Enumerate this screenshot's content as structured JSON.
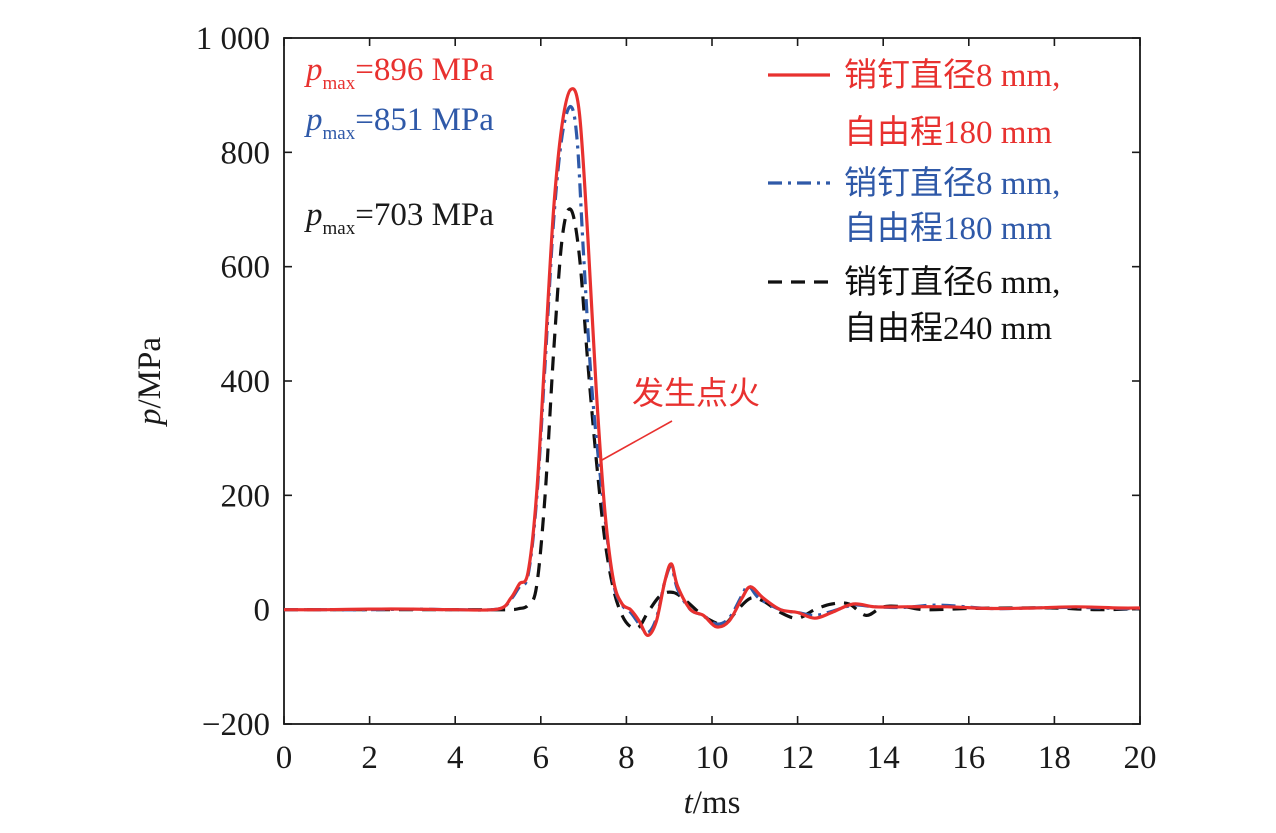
{
  "chart_data": {
    "type": "line",
    "xlabel": {
      "italic": "t",
      "rest": "/ms"
    },
    "ylabel": {
      "italic": "p",
      "rest": "/MPa"
    },
    "xlim": [
      0,
      20
    ],
    "ylim": [
      -200,
      1000
    ],
    "xticks": [
      0,
      2,
      4,
      6,
      8,
      10,
      12,
      14,
      16,
      18,
      20
    ],
    "yticks": [
      {
        "value": -200,
        "label": "−200"
      },
      {
        "value": 0,
        "label": "0"
      },
      {
        "value": 200,
        "label": "200"
      },
      {
        "value": 400,
        "label": "400"
      },
      {
        "value": 600,
        "label": "600"
      },
      {
        "value": 800,
        "label": "800"
      },
      {
        "value": 1000,
        "label": "1 000"
      }
    ],
    "grid": false,
    "legend_position": "top-right",
    "series": [
      {
        "name_line1": "销钉直径8 mm,",
        "name_line2": "自由程180 mm",
        "color": "#e8312f",
        "dash": "solid",
        "points": [
          [
            0,
            0
          ],
          [
            1,
            0
          ],
          [
            2,
            1
          ],
          [
            3,
            1
          ],
          [
            4,
            0
          ],
          [
            5,
            1
          ],
          [
            5.3,
            20
          ],
          [
            5.5,
            45
          ],
          [
            5.7,
            65
          ],
          [
            5.9,
            200
          ],
          [
            6.1,
            450
          ],
          [
            6.3,
            700
          ],
          [
            6.5,
            850
          ],
          [
            6.7,
            910
          ],
          [
            6.9,
            870
          ],
          [
            7.1,
            650
          ],
          [
            7.3,
            380
          ],
          [
            7.5,
            170
          ],
          [
            7.7,
            50
          ],
          [
            7.9,
            10
          ],
          [
            8.1,
            0
          ],
          [
            8.3,
            -20
          ],
          [
            8.5,
            -45
          ],
          [
            8.7,
            -20
          ],
          [
            8.9,
            50
          ],
          [
            9.05,
            80
          ],
          [
            9.2,
            40
          ],
          [
            9.5,
            0
          ],
          [
            9.8,
            -10
          ],
          [
            10.1,
            -30
          ],
          [
            10.4,
            -20
          ],
          [
            10.7,
            20
          ],
          [
            10.9,
            40
          ],
          [
            11.2,
            20
          ],
          [
            11.6,
            0
          ],
          [
            12,
            -5
          ],
          [
            12.4,
            -15
          ],
          [
            12.8,
            -5
          ],
          [
            13.3,
            10
          ],
          [
            13.8,
            5
          ],
          [
            14.5,
            5
          ],
          [
            15.5,
            5
          ],
          [
            16.5,
            2
          ],
          [
            17.5,
            3
          ],
          [
            18.5,
            5
          ],
          [
            19.5,
            3
          ],
          [
            20,
            3
          ]
        ]
      },
      {
        "name_line1": "销钉直径8 mm,",
        "name_line2": "自由程180 mm",
        "color": "#2f59a8",
        "dash": "dashdot",
        "points": [
          [
            0,
            0
          ],
          [
            1,
            0
          ],
          [
            2,
            0
          ],
          [
            3,
            1
          ],
          [
            4,
            0
          ],
          [
            5,
            1
          ],
          [
            5.3,
            18
          ],
          [
            5.5,
            40
          ],
          [
            5.7,
            60
          ],
          [
            5.9,
            190
          ],
          [
            6.1,
            430
          ],
          [
            6.3,
            680
          ],
          [
            6.5,
            830
          ],
          [
            6.7,
            880
          ],
          [
            6.85,
            820
          ],
          [
            7.0,
            620
          ],
          [
            7.2,
            380
          ],
          [
            7.5,
            160
          ],
          [
            7.7,
            45
          ],
          [
            7.9,
            8
          ],
          [
            8.1,
            -5
          ],
          [
            8.3,
            -25
          ],
          [
            8.5,
            -40
          ],
          [
            8.7,
            -15
          ],
          [
            8.9,
            50
          ],
          [
            9.05,
            75
          ],
          [
            9.2,
            35
          ],
          [
            9.5,
            0
          ],
          [
            9.8,
            -10
          ],
          [
            10.1,
            -25
          ],
          [
            10.4,
            -15
          ],
          [
            10.7,
            25
          ],
          [
            10.85,
            42
          ],
          [
            11.1,
            20
          ],
          [
            11.6,
            0
          ],
          [
            12,
            -5
          ],
          [
            12.4,
            -10
          ],
          [
            12.8,
            -3
          ],
          [
            13.3,
            8
          ],
          [
            13.8,
            5
          ],
          [
            14.5,
            4
          ],
          [
            15.3,
            8
          ],
          [
            16.5,
            2
          ],
          [
            17.5,
            3
          ],
          [
            18.5,
            4
          ],
          [
            19.5,
            2
          ],
          [
            20,
            2
          ]
        ]
      },
      {
        "name_line1": "销钉直径6 mm,",
        "name_line2": "自由程240 mm",
        "color": "#111111",
        "dash": "dashed",
        "points": [
          [
            0,
            0
          ],
          [
            1,
            0
          ],
          [
            2,
            0
          ],
          [
            3,
            0
          ],
          [
            4,
            0
          ],
          [
            5.2,
            0
          ],
          [
            5.5,
            2
          ],
          [
            5.7,
            8
          ],
          [
            5.9,
            40
          ],
          [
            6.1,
            200
          ],
          [
            6.3,
            450
          ],
          [
            6.5,
            650
          ],
          [
            6.7,
            700
          ],
          [
            6.9,
            620
          ],
          [
            7.1,
            430
          ],
          [
            7.3,
            260
          ],
          [
            7.5,
            120
          ],
          [
            7.7,
            35
          ],
          [
            7.9,
            -10
          ],
          [
            8.1,
            -30
          ],
          [
            8.3,
            -30
          ],
          [
            8.5,
            -5
          ],
          [
            8.8,
            25
          ],
          [
            9.1,
            30
          ],
          [
            9.4,
            15
          ],
          [
            9.7,
            -5
          ],
          [
            10.0,
            -20
          ],
          [
            10.3,
            -25
          ],
          [
            10.6,
            0
          ],
          [
            10.9,
            20
          ],
          [
            11.2,
            15
          ],
          [
            11.6,
            -5
          ],
          [
            12.0,
            -15
          ],
          [
            12.4,
            0
          ],
          [
            12.8,
            10
          ],
          [
            13.2,
            10
          ],
          [
            13.6,
            -10
          ],
          [
            14,
            5
          ],
          [
            14.5,
            5
          ],
          [
            15,
            0
          ],
          [
            16,
            2
          ],
          [
            17,
            3
          ],
          [
            18,
            3
          ],
          [
            19,
            0
          ],
          [
            20,
            2
          ]
        ]
      }
    ],
    "annotations": [
      {
        "id": "pmax1",
        "value": "=896 MPa",
        "color": "#e8312f"
      },
      {
        "id": "pmax2",
        "value": "=851 MPa",
        "color": "#2f59a8"
      },
      {
        "id": "pmax3",
        "value": "=703 MPa",
        "color": "#1a1a1a"
      }
    ],
    "pmax_symbol": "p",
    "pmax_subscript": "max",
    "ignition_label": "发生点火",
    "ignition_color": "#e8312f"
  }
}
